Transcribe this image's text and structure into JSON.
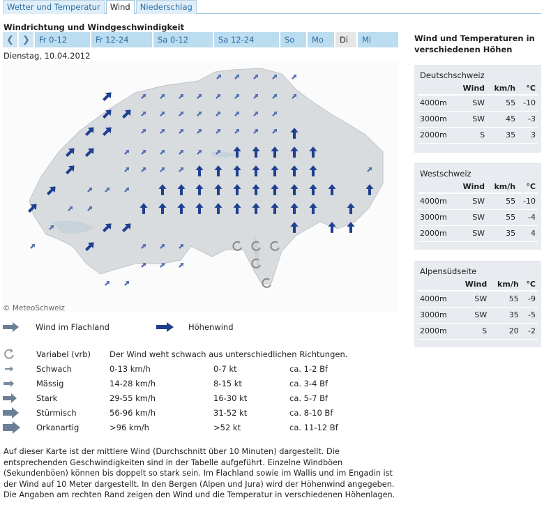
{
  "tabs": [
    "Wetter und Temperatur",
    "Wind",
    "Niederschlag"
  ],
  "section_title": "Windrichtung und Windgeschwindigkeit",
  "days": [
    "Fr 0-12",
    "Fr 12-24",
    "Sa 0-12",
    "Sa 12-24",
    "So",
    "Mo",
    "Di",
    "Mi"
  ],
  "active_day": "Di",
  "date": "Dienstag, 10.04.2012",
  "copyright": "© MeteoSchweiz",
  "legend": {
    "lowland": "Wind im Flachland",
    "altitude": "Höhenwind",
    "rows": [
      {
        "name": "Variabel (vrb)",
        "desc": "Der Wind weht schwach aus unterschiedlichen Richtungen."
      },
      {
        "name": "Schwach",
        "kmh": "0-13 km/h",
        "kt": "0-7 kt",
        "bf": "ca. 1-2 Bf"
      },
      {
        "name": "Mässig",
        "kmh": "14-28 km/h",
        "kt": "8-15 kt",
        "bf": "ca. 3-4 Bf"
      },
      {
        "name": "Stark",
        "kmh": "29-55 km/h",
        "kt": "16-30 kt",
        "bf": "ca. 5-7 Bf"
      },
      {
        "name": "Stürmisch",
        "kmh": "56-96 km/h",
        "kt": "31-52 kt",
        "bf": "ca. 8-10 Bf"
      },
      {
        "name": "Orkanartig",
        "kmh": ">96 km/h",
        "kt": ">52 kt",
        "bf": "ca. 11-12 Bf"
      }
    ]
  },
  "description": [
    "Auf dieser Karte ist der mittlere Wind (Durchschnitt über 10 Minuten) dargestellt. Die entsprechenden Geschwindigkeiten sind in der Tabelle aufgeführt. Einzelne Windböen (Sekundenböen) können bis doppelt so stark sein. Im Flachland sowie im Wallis und im Engadin ist der Wind auf 10 Meter dargestellt. In den Bergen (Alpen und Jura) wird der Höhenwind angegeben.",
    "Die Angaben am rechten Rand zeigen den Wind und die Temperatur in verschiedenen Höhenlagen."
  ],
  "right_title": "Wind und Temperaturen in verschiedenen Höhen",
  "table_headers": {
    "wind": "Wind",
    "kmh": "km/h",
    "temp": "°C"
  },
  "regions": [
    {
      "name": "Deutschschweiz",
      "rows": [
        [
          "4000m",
          "SW",
          "55",
          "-10"
        ],
        [
          "3000m",
          "SW",
          "45",
          "-3"
        ],
        [
          "2000m",
          "S",
          "35",
          "3"
        ]
      ]
    },
    {
      "name": "Westschweiz",
      "rows": [
        [
          "4000m",
          "SW",
          "55",
          "-10"
        ],
        [
          "3000m",
          "SW",
          "55",
          "-4"
        ],
        [
          "2000m",
          "SW",
          "35",
          "4"
        ]
      ]
    },
    {
      "name": "Alpensüdseite",
      "rows": [
        [
          "4000m",
          "SW",
          "55",
          "-9"
        ],
        [
          "3000m",
          "SW",
          "35",
          "-5"
        ],
        [
          "2000m",
          "S",
          "20",
          "-2"
        ]
      ]
    }
  ],
  "colors": {
    "tab_blue": "#2b6c9f",
    "arrow_dark": "#1f3f8f",
    "arrow_light": "#4e6db0",
    "panel_bg": "#e8ecf0"
  }
}
